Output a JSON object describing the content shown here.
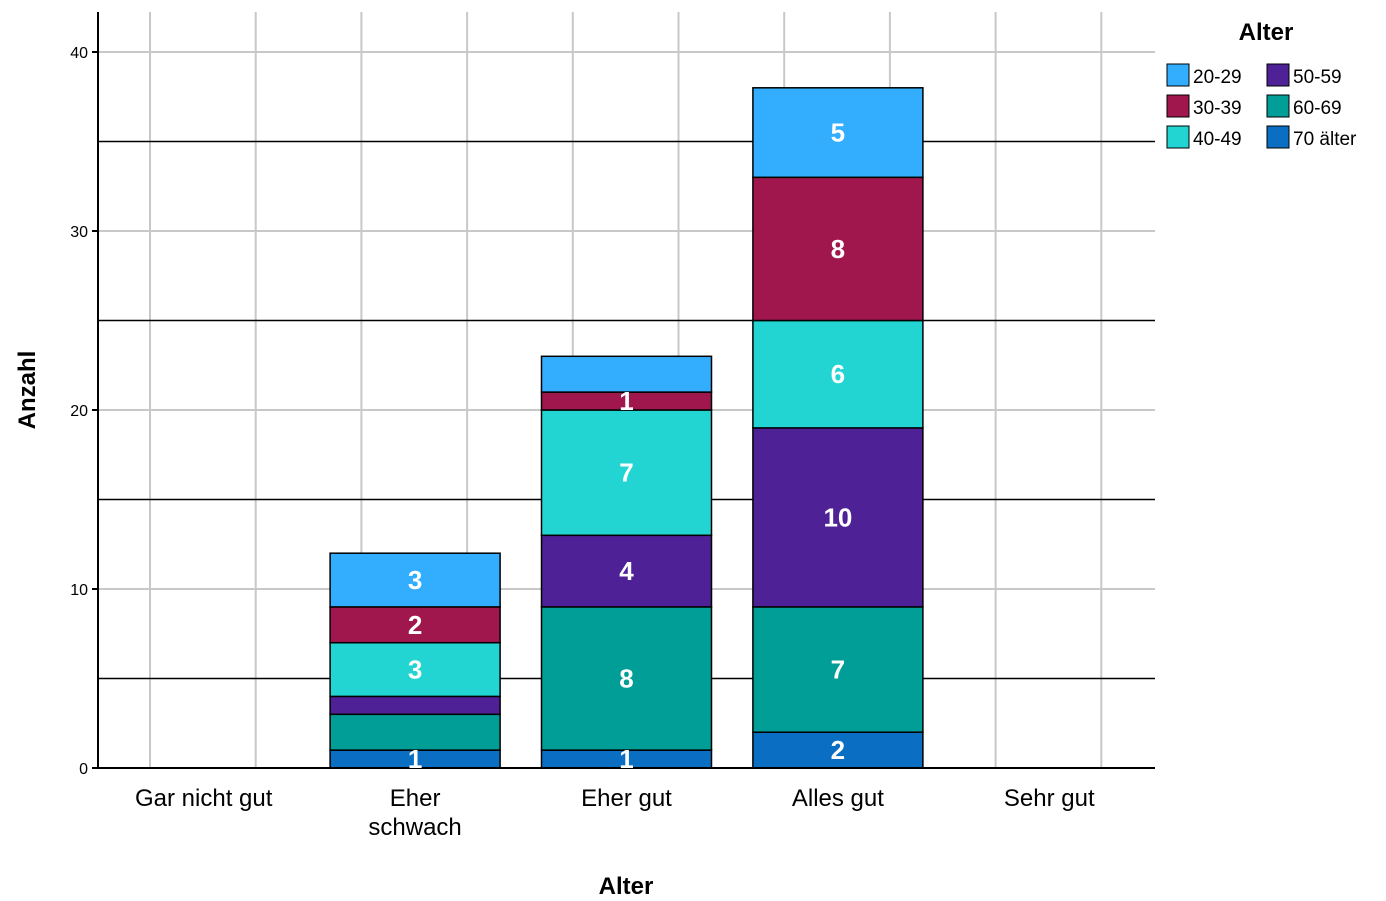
{
  "chart_data": {
    "type": "bar",
    "stacked": true,
    "title": "",
    "xlabel": "Alter",
    "ylabel": "Anzahl",
    "ylim": [
      0,
      42
    ],
    "yticks": [
      0,
      10,
      20,
      30,
      40
    ],
    "grid": true,
    "legend_title": "Alter",
    "legend_position": "top-right",
    "categories": [
      "Gar nicht gut",
      "Eher schwach",
      "Eher gut",
      "Alles gut",
      "Sehr gut"
    ],
    "category_labels": [
      [
        "Gar nicht gut"
      ],
      [
        "Eher",
        "schwach"
      ],
      [
        "Eher gut"
      ],
      [
        "Alles gut"
      ],
      [
        "Sehr gut"
      ]
    ],
    "series": [
      {
        "name": "70 älter",
        "color": "#0A6FC2",
        "values": [
          0,
          1,
          1,
          2,
          0
        ]
      },
      {
        "name": "60-69",
        "color": "#009E96",
        "values": [
          0,
          2,
          8,
          7,
          0
        ]
      },
      {
        "name": "50-59",
        "color": "#4E2196",
        "values": [
          0,
          1,
          4,
          10,
          0
        ]
      },
      {
        "name": "40-49",
        "color": "#22D5D2",
        "values": [
          0,
          3,
          7,
          6,
          0
        ]
      },
      {
        "name": "30-39",
        "color": "#A0174E",
        "values": [
          0,
          2,
          1,
          8,
          0
        ]
      },
      {
        "name": "20-29",
        "color": "#33AEFF",
        "values": [
          0,
          3,
          2,
          5,
          0
        ]
      }
    ],
    "data_labels": [
      {
        "series": "70 älter",
        "category": "Eher schwach",
        "text": "1"
      },
      {
        "series": "70 älter",
        "category": "Eher gut",
        "text": "1"
      },
      {
        "series": "70 älter",
        "category": "Alles gut",
        "text": "2"
      },
      {
        "series": "60-69",
        "category": "Eher gut",
        "text": "8"
      },
      {
        "series": "60-69",
        "category": "Alles gut",
        "text": "7"
      },
      {
        "series": "50-59",
        "category": "Eher gut",
        "text": "4"
      },
      {
        "series": "50-59",
        "category": "Alles gut",
        "text": "10"
      },
      {
        "series": "40-49",
        "category": "Eher schwach",
        "text": "3"
      },
      {
        "series": "40-49",
        "category": "Eher gut",
        "text": "7"
      },
      {
        "series": "40-49",
        "category": "Alles gut",
        "text": "6"
      },
      {
        "series": "30-39",
        "category": "Eher schwach",
        "text": "2"
      },
      {
        "series": "30-39",
        "category": "Eher gut",
        "text": "1"
      },
      {
        "series": "30-39",
        "category": "Alles gut",
        "text": "8"
      },
      {
        "series": "20-29",
        "category": "Eher schwach",
        "text": "3"
      },
      {
        "series": "20-29",
        "category": "Alles gut",
        "text": "5"
      }
    ],
    "legend_order": [
      "20-29",
      "50-59",
      "30-39",
      "60-69",
      "40-49",
      "70 älter"
    ]
  }
}
